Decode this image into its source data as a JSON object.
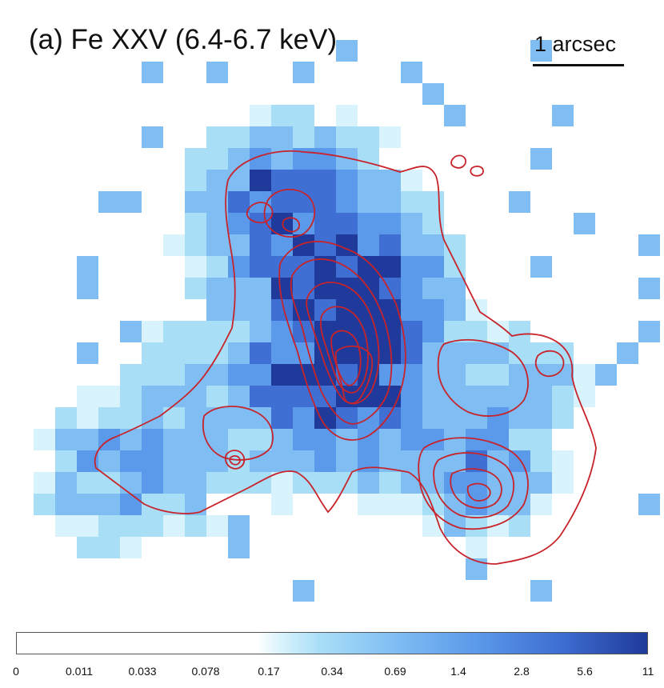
{
  "title": "(a) Fe XXV (6.4-6.7 keV)",
  "scale_bar": {
    "label": "1 arcsec"
  },
  "colorbar": {
    "tick_labels": [
      "0",
      "0.011",
      "0.033",
      "0.078",
      "0.17",
      "0.34",
      "0.69",
      "1.4",
      "2.8",
      "5.6",
      "11"
    ]
  },
  "colors": {
    "contour": "#c8232a",
    "pixel_scale": [
      "#d8f3fb",
      "#a9def7",
      "#7fbdf3",
      "#5b99ea",
      "#3f6fd3",
      "#1f3a9a"
    ]
  }
}
